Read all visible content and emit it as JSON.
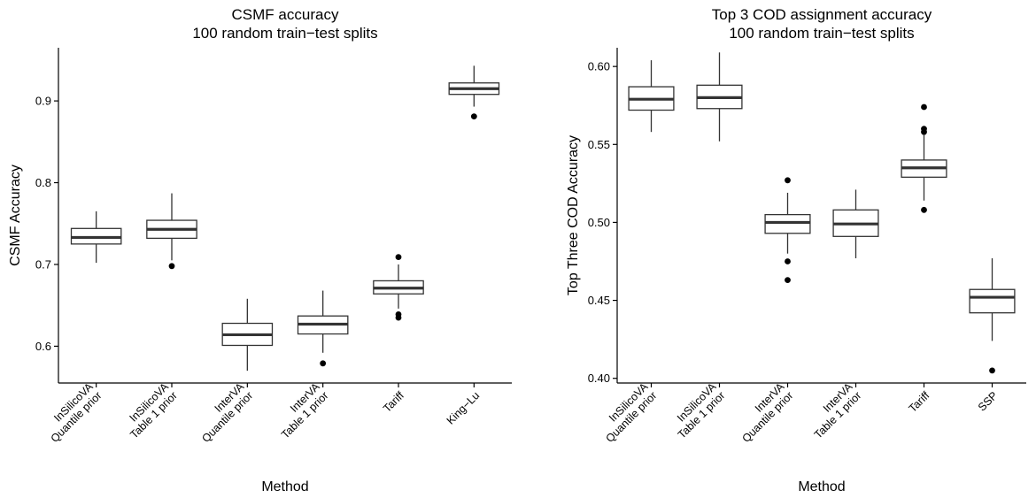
{
  "chart_data": [
    {
      "type": "box",
      "title_lines": [
        "CSMF accuracy",
        "100 random train−test splits"
      ],
      "xlabel": "Method",
      "ylabel": "CSMF Accuracy",
      "ylim": [
        0.555,
        0.965
      ],
      "yticks": [
        "0.6",
        "0.7",
        "0.8",
        "0.9"
      ],
      "ytick_values": [
        0.6,
        0.7,
        0.8,
        0.9
      ],
      "categories": [
        [
          "InSilicoVA",
          "Quantile prior"
        ],
        [
          "InSilicoVA",
          "Table 1 prior"
        ],
        [
          "InterVA",
          "Quantile prior"
        ],
        [
          "InterVA",
          "Table 1 prior"
        ],
        [
          "Tariff"
        ],
        [
          "King−Lu"
        ]
      ],
      "boxes": [
        {
          "low": 0.702,
          "q1": 0.725,
          "median": 0.733,
          "q3": 0.744,
          "high": 0.765,
          "outliers": []
        },
        {
          "low": 0.705,
          "q1": 0.732,
          "median": 0.743,
          "q3": 0.754,
          "high": 0.787,
          "outliers": [
            0.698
          ]
        },
        {
          "low": 0.57,
          "q1": 0.601,
          "median": 0.614,
          "q3": 0.628,
          "high": 0.658,
          "outliers": []
        },
        {
          "low": 0.592,
          "q1": 0.615,
          "median": 0.627,
          "q3": 0.637,
          "high": 0.668,
          "outliers": [
            0.579
          ]
        },
        {
          "low": 0.646,
          "q1": 0.664,
          "median": 0.671,
          "q3": 0.68,
          "high": 0.7,
          "outliers": [
            0.709,
            0.639,
            0.635
          ]
        },
        {
          "low": 0.893,
          "q1": 0.908,
          "median": 0.915,
          "q3": 0.922,
          "high": 0.943,
          "outliers": [
            0.881
          ]
        }
      ]
    },
    {
      "type": "box",
      "title_lines": [
        "Top 3 COD assignment accuracy",
        "100 random train−test splits"
      ],
      "xlabel": "Method",
      "ylabel": "Top Three COD Accuracy",
      "ylim": [
        0.397,
        0.612
      ],
      "yticks": [
        "0.40",
        "0.45",
        "0.50",
        "0.55",
        "0.60"
      ],
      "ytick_values": [
        0.4,
        0.45,
        0.5,
        0.55,
        0.6
      ],
      "categories": [
        [
          "InSilicoVA",
          "Quantile prior"
        ],
        [
          "InSilicoVA",
          "Table 1 prior"
        ],
        [
          "InterVA",
          "Quantile prior"
        ],
        [
          "InterVA",
          "Table 1 prior"
        ],
        [
          "Tariff"
        ],
        [
          "SSP"
        ]
      ],
      "boxes": [
        {
          "low": 0.558,
          "q1": 0.572,
          "median": 0.579,
          "q3": 0.587,
          "high": 0.604,
          "outliers": []
        },
        {
          "low": 0.552,
          "q1": 0.573,
          "median": 0.58,
          "q3": 0.588,
          "high": 0.609,
          "outliers": []
        },
        {
          "low": 0.48,
          "q1": 0.493,
          "median": 0.5,
          "q3": 0.505,
          "high": 0.519,
          "outliers": [
            0.527,
            0.475,
            0.463
          ]
        },
        {
          "low": 0.477,
          "q1": 0.491,
          "median": 0.499,
          "q3": 0.508,
          "high": 0.521,
          "outliers": []
        },
        {
          "low": 0.514,
          "q1": 0.529,
          "median": 0.535,
          "q3": 0.54,
          "high": 0.556,
          "outliers": [
            0.574,
            0.56,
            0.558,
            0.508
          ]
        },
        {
          "low": 0.424,
          "q1": 0.442,
          "median": 0.452,
          "q3": 0.457,
          "high": 0.477,
          "outliers": [
            0.405
          ]
        }
      ]
    }
  ]
}
